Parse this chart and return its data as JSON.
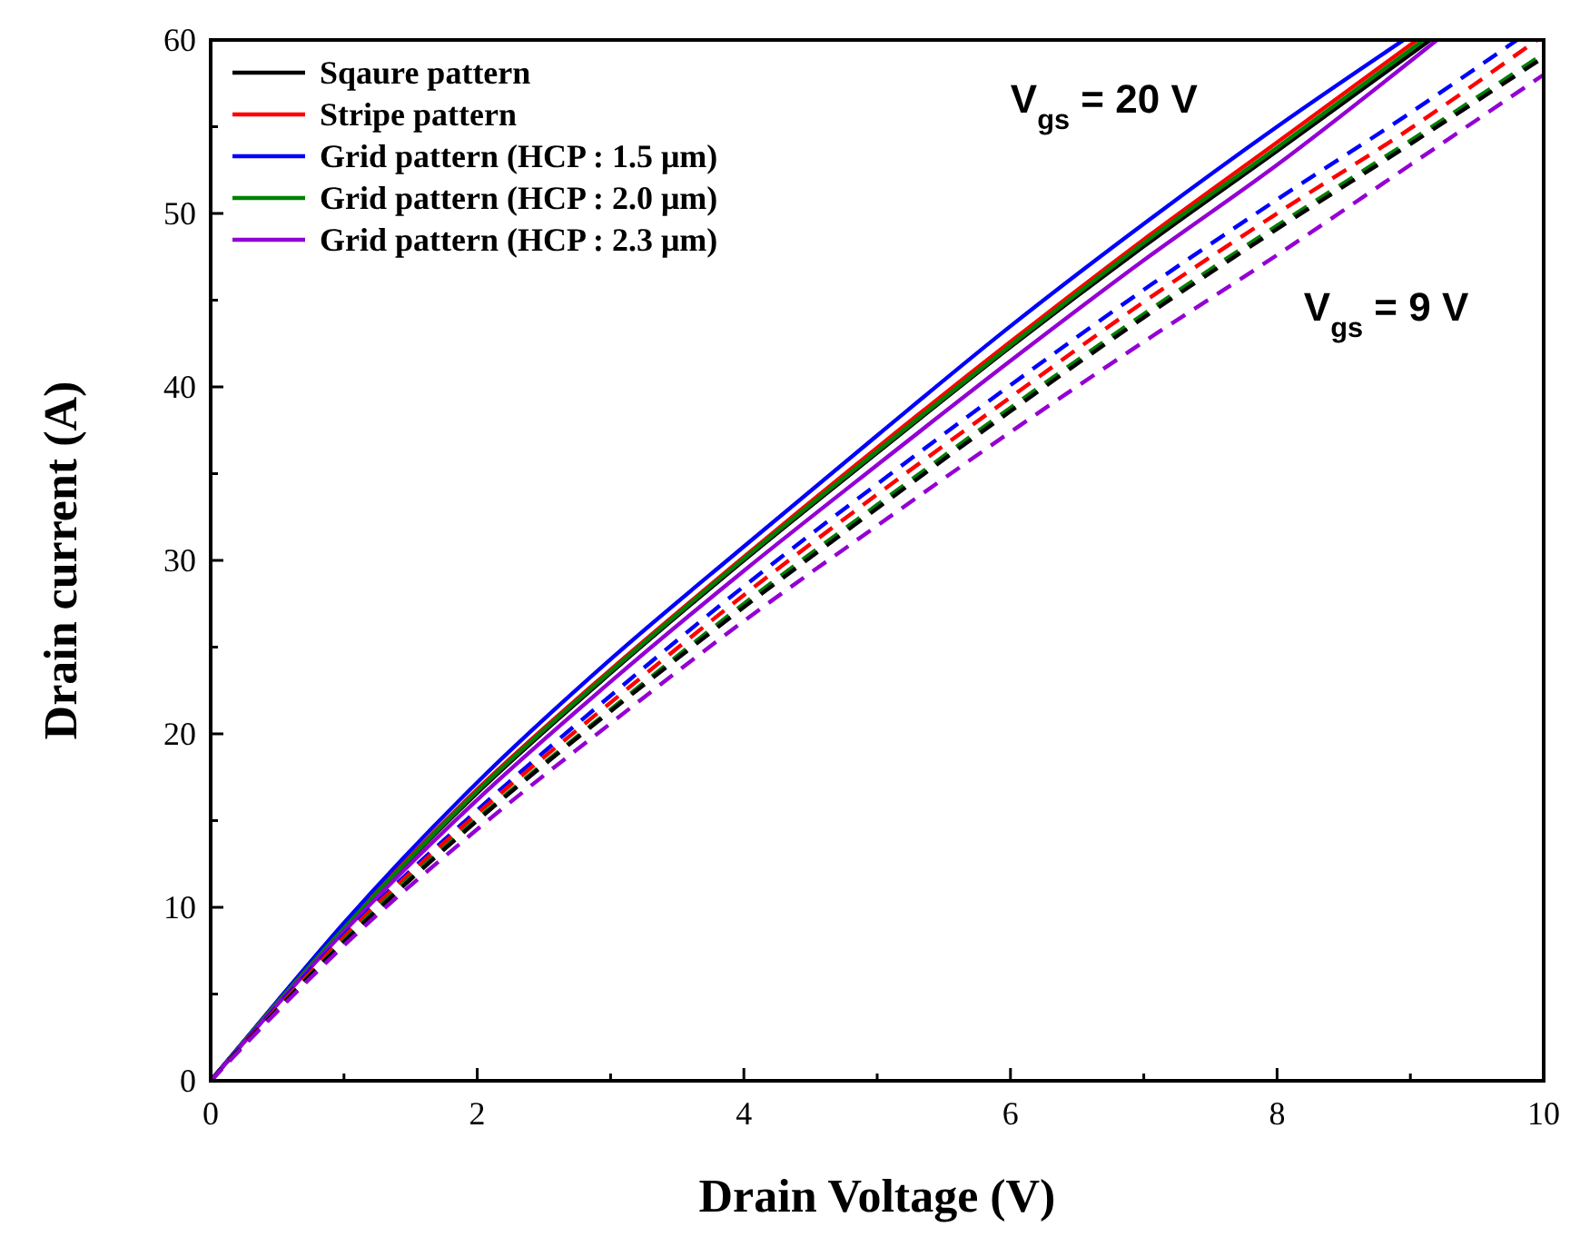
{
  "chart_data": {
    "type": "line",
    "xlabel": "Drain Voltage (V)",
    "ylabel": "Drain current (A)",
    "xlim": [
      0,
      10
    ],
    "ylim": [
      0,
      60
    ],
    "xticks": [
      0,
      {
        "value": 1,
        "label": null
      },
      2,
      {
        "value": 3,
        "label": null
      },
      4,
      {
        "value": 5,
        "label": null
      },
      6,
      {
        "value": 7,
        "label": null
      },
      8,
      {
        "value": 9,
        "label": null
      },
      10
    ],
    "yticks": [
      0,
      {
        "value": 5,
        "label": null
      },
      10,
      {
        "value": 15,
        "label": null
      },
      20,
      {
        "value": 25,
        "label": null
      },
      30,
      {
        "value": 35,
        "label": null
      },
      40,
      {
        "value": 45,
        "label": null
      },
      50,
      {
        "value": 55,
        "label": null
      },
      60
    ],
    "legend": "top left",
    "grid": false,
    "annotations": [
      "V$_{gs}$ = 20 V",
      "V$_{gs}$ = 9 V"
    ],
    "series": [
      {
        "name": "Sqaure pattern",
        "color": "#000000",
        "line_style": "solid",
        "x": [
          0,
          0.5,
          1,
          2,
          3,
          4,
          5,
          6,
          7,
          8,
          9.15
        ],
        "values": [
          0,
          4.5,
          8.8,
          16.6,
          23.5,
          30,
          36.2,
          42.3,
          48.1,
          53.6,
          60
        ]
      },
      {
        "name": "Stripe pattern",
        "color": "#ff0000",
        "line_style": "solid",
        "x": [
          0,
          0.5,
          1,
          2,
          3,
          4,
          5,
          6,
          7,
          8,
          9.05
        ],
        "values": [
          0,
          4.5,
          8.9,
          16.8,
          23.7,
          30.2,
          36.5,
          42.6,
          48.5,
          54.1,
          60
        ]
      },
      {
        "name": "Grid pattern (HCP : 1.5 μm)",
        "color": "#0000ff",
        "line_style": "solid",
        "x": [
          0,
          0.5,
          1,
          2,
          3,
          4,
          5,
          6,
          7,
          8,
          8.95
        ],
        "values": [
          0,
          4.6,
          9.1,
          17.2,
          24.3,
          30.8,
          37.2,
          43.5,
          49.4,
          55,
          60
        ]
      },
      {
        "name": "Grid pattern (HCP : 2.0 μm)",
        "color": "#008000",
        "line_style": "solid",
        "x": [
          0,
          0.5,
          1,
          2,
          3,
          4,
          5,
          6,
          7,
          8,
          9.1
        ],
        "values": [
          0,
          4.5,
          8.8,
          16.7,
          23.6,
          30.1,
          36.3,
          42.4,
          48.3,
          53.8,
          60
        ]
      },
      {
        "name": "Grid pattern (HCP : 2.3 μm)",
        "color": "#9400d3",
        "line_style": "solid",
        "x": [
          0,
          0.5,
          1,
          2,
          3,
          4,
          5,
          6,
          7,
          8,
          9.2
        ],
        "values": [
          0,
          4.4,
          8.6,
          16.2,
          23,
          29.4,
          35.5,
          41.5,
          47.3,
          52.8,
          60
        ]
      },
      {
        "color": "#0000ff",
        "line_style": "dashed",
        "x": [
          0,
          0.5,
          1,
          2,
          3,
          4,
          5,
          6,
          7,
          8,
          9,
          9.8
        ],
        "values": [
          0,
          4.3,
          8.4,
          15.6,
          22.2,
          28.5,
          34.4,
          40.1,
          45.6,
          50.8,
          55.8,
          60
        ]
      },
      {
        "color": "#ff0000",
        "line_style": "dashed",
        "x": [
          0,
          0.5,
          1,
          2,
          3,
          4,
          5,
          6,
          7,
          8,
          9,
          9.95
        ],
        "values": [
          0,
          4.2,
          8.3,
          15.4,
          21.8,
          28,
          33.8,
          39.4,
          44.9,
          50,
          54.9,
          60
        ]
      },
      {
        "color": "#008000",
        "line_style": "dashed",
        "x": [
          0,
          0.5,
          1,
          2,
          3,
          4,
          5,
          6,
          7,
          8,
          9,
          10
        ],
        "values": [
          0,
          4.1,
          8.1,
          15.1,
          21.4,
          27.5,
          33.2,
          38.8,
          44.2,
          49.3,
          54.2,
          59.2
        ]
      },
      {
        "color": "#000000",
        "line_style": "dashed",
        "x": [
          0,
          0.5,
          1,
          2,
          3,
          4,
          5,
          6,
          7,
          8,
          9,
          10
        ],
        "values": [
          0,
          4.1,
          8,
          15,
          21.3,
          27.3,
          33,
          38.6,
          44,
          49.1,
          54,
          59
        ]
      },
      {
        "color": "#9400d3",
        "line_style": "dashed",
        "x": [
          0,
          0.5,
          1,
          2,
          3,
          4,
          5,
          6,
          7,
          8,
          9,
          10
        ],
        "values": [
          0,
          4,
          7.8,
          14.5,
          20.6,
          26.5,
          32,
          37.4,
          42.6,
          47.6,
          52.8,
          58
        ]
      }
    ]
  }
}
